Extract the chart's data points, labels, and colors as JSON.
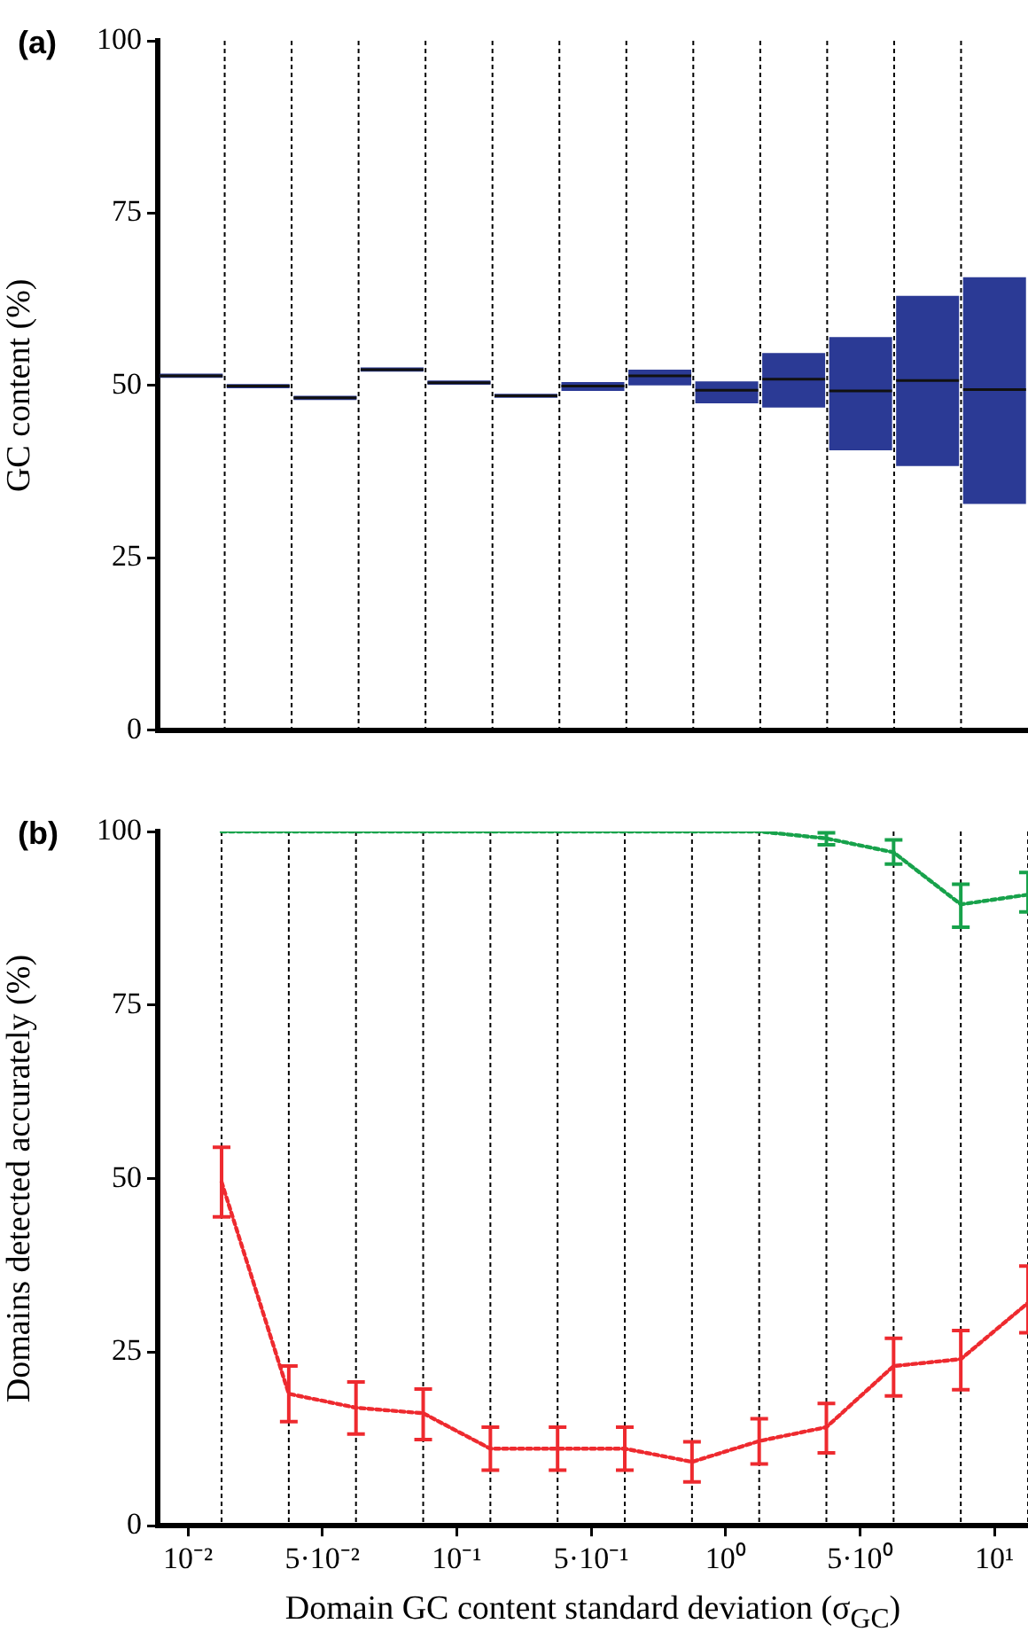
{
  "chart_data": [
    {
      "type": "box",
      "title": "(a)",
      "ylabel": "GC content (%)",
      "categories": [
        null,
        null,
        null,
        null,
        null,
        null,
        null,
        null,
        null,
        null,
        null,
        null,
        null
      ],
      "ylim": [
        0,
        100
      ],
      "yticks": [
        0,
        25,
        50,
        75,
        100
      ],
      "tick_labels": "y",
      "grid": "x",
      "marker": "none",
      "line_style": "solid",
      "series": [
        {
          "color": "#2b3a95",
          "boxes": [
            {
              "low": 51.1,
              "q1": 51.1,
              "median": 51.4,
              "q3": 51.7,
              "high": 51.7
            },
            {
              "low": 49.6,
              "q1": 49.6,
              "median": 49.9,
              "q3": 50.2,
              "high": 50.2
            },
            {
              "low": 47.9,
              "q1": 47.9,
              "median": 48.2,
              "q3": 48.5,
              "high": 48.5
            },
            {
              "low": 52.0,
              "q1": 52.0,
              "median": 52.3,
              "q3": 52.6,
              "high": 52.6
            },
            {
              "low": 50.1,
              "q1": 50.1,
              "median": 50.4,
              "q3": 50.7,
              "high": 50.7
            },
            {
              "low": 48.2,
              "q1": 48.2,
              "median": 48.5,
              "q3": 48.8,
              "high": 48.8
            },
            {
              "low": 49.2,
              "q1": 49.2,
              "median": 49.9,
              "q3": 50.5,
              "high": 50.5
            },
            {
              "low": 50.0,
              "q1": 50.0,
              "median": 51.4,
              "q3": 52.3,
              "high": 52.3
            },
            {
              "low": 47.4,
              "q1": 47.4,
              "median": 49.3,
              "q3": 50.6,
              "high": 50.6
            },
            {
              "low": 46.8,
              "q1": 46.8,
              "median": 50.9,
              "q3": 54.7,
              "high": 54.7
            },
            {
              "low": 40.6,
              "q1": 40.6,
              "median": 49.2,
              "q3": 57.0,
              "high": 57.0
            },
            {
              "low": 38.3,
              "q1": 38.3,
              "median": 50.7,
              "q3": 63.0,
              "high": 63.0
            },
            {
              "low": 32.8,
              "q1": 32.8,
              "median": 49.4,
              "q3": 65.7,
              "high": 65.7
            }
          ]
        }
      ]
    },
    {
      "type": "line",
      "title": "(b)",
      "xlabel": "Domain GC content standard deviation (σ$_{GC}$)",
      "ylabel": "Domains detected accurately (%)",
      "categories": [
        "10⁻²",
        null,
        null,
        null,
        "5·10⁻²",
        null,
        null,
        null,
        "10⁻¹",
        null,
        null,
        null,
        "5·10⁻¹",
        null,
        null,
        null,
        "10⁰",
        null,
        null,
        null,
        "5·10⁰",
        null,
        null,
        null,
        "10¹",
        null
      ],
      "ylim": [
        0,
        100
      ],
      "yticks": [
        0,
        25,
        50,
        75,
        100
      ],
      "grid": "x",
      "marker": "none",
      "line_style": "dotted",
      "series": [
        {
          "color": "#17a24b",
          "values": [
            null,
            100,
            null,
            100,
            null,
            100,
            null,
            100,
            null,
            100,
            null,
            100,
            null,
            100,
            null,
            100,
            null,
            100,
            null,
            99.0,
            null,
            97.0,
            null,
            89.5,
            null,
            90.9
          ],
          "errors": [
            null,
            null,
            null,
            null,
            null,
            null,
            null,
            null,
            null,
            null,
            null,
            null,
            null,
            null,
            null,
            null,
            null,
            null,
            null,
            [
              98.1,
              99.8
            ],
            null,
            [
              95.3,
              98.8
            ],
            null,
            [
              86.2,
              92.4
            ],
            null,
            [
              88.4,
              94.1
            ]
          ]
        },
        {
          "color": "#ee2a2f",
          "values": [
            null,
            49.5,
            null,
            19.0,
            null,
            17.0,
            null,
            16.2,
            null,
            11.1,
            null,
            11.1,
            null,
            11.1,
            null,
            9.2,
            null,
            12.2,
            null,
            14.2,
            null,
            23.0,
            null,
            24.0,
            null,
            32.1
          ],
          "errors": [
            null,
            [
              44.5,
              54.5
            ],
            null,
            [
              15.0,
              23.0
            ],
            null,
            [
              13.2,
              20.7
            ],
            null,
            [
              12.4,
              19.7
            ],
            null,
            [
              8.0,
              14.2
            ],
            null,
            [
              8.0,
              14.2
            ],
            null,
            [
              8.0,
              14.2
            ],
            null,
            [
              6.3,
              12.1
            ],
            null,
            [
              8.9,
              15.4
            ],
            null,
            [
              10.5,
              17.6
            ],
            null,
            [
              18.7,
              27.0
            ],
            null,
            [
              19.6,
              28.1
            ],
            null,
            [
              27.8,
              37.4
            ]
          ]
        }
      ]
    }
  ]
}
